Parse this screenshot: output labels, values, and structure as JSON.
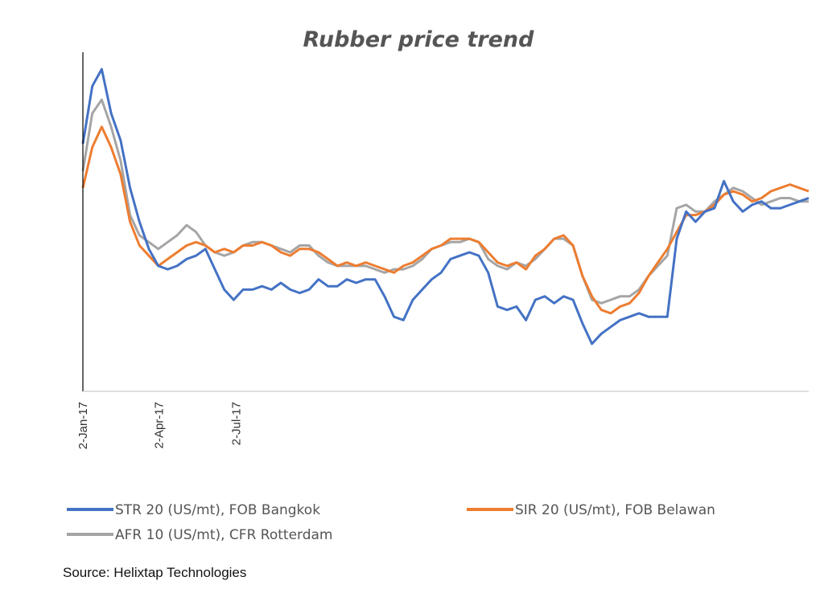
{
  "chart_data": {
    "type": "line",
    "title": "Rubber price trend",
    "x_tick_labels": [
      "2-Jan-17",
      "2-Apr-17",
      "2-Jul-17"
    ],
    "x_tick_dates": [
      "2017-01-02",
      "2017-04-02",
      "2017-07-02"
    ],
    "ylim": [
      0,
      1
    ],
    "y_tick_labels_visible": false,
    "grid": false,
    "legend_position": "bottom",
    "series": [
      {
        "name": "STR 20 (US/mt), FOB Bangkok",
        "color": "#4472C4",
        "values": [
          0.73,
          0.9,
          0.95,
          0.82,
          0.74,
          0.6,
          0.5,
          0.42,
          0.37,
          0.36,
          0.37,
          0.39,
          0.4,
          0.42,
          0.36,
          0.3,
          0.27,
          0.3,
          0.3,
          0.31,
          0.3,
          0.32,
          0.3,
          0.29,
          0.3,
          0.33,
          0.31,
          0.31,
          0.33,
          0.32,
          0.33,
          0.33,
          0.28,
          0.22,
          0.21,
          0.27,
          0.3,
          0.33,
          0.35,
          0.39,
          0.4,
          0.41,
          0.4,
          0.35,
          0.25,
          0.24,
          0.25,
          0.21,
          0.27,
          0.28,
          0.26,
          0.28,
          0.27,
          0.2,
          0.14,
          0.17,
          0.19,
          0.21,
          0.22,
          0.23,
          0.22,
          0.22,
          0.22,
          0.45,
          0.53,
          0.5,
          0.53,
          0.54,
          0.62,
          0.56,
          0.53,
          0.55,
          0.56,
          0.54,
          0.54,
          0.55,
          0.56,
          0.57
        ]
      },
      {
        "name": "SIR 20 (US/mt), FOB Belawan",
        "color": "#ED7D31",
        "values": [
          0.6,
          0.72,
          0.78,
          0.72,
          0.64,
          0.5,
          0.43,
          0.4,
          0.37,
          0.39,
          0.41,
          0.43,
          0.44,
          0.43,
          0.41,
          0.42,
          0.41,
          0.43,
          0.43,
          0.44,
          0.43,
          0.41,
          0.4,
          0.42,
          0.42,
          0.41,
          0.39,
          0.37,
          0.38,
          0.37,
          0.38,
          0.37,
          0.36,
          0.35,
          0.37,
          0.38,
          0.4,
          0.42,
          0.43,
          0.45,
          0.45,
          0.45,
          0.44,
          0.41,
          0.38,
          0.37,
          0.38,
          0.36,
          0.4,
          0.42,
          0.45,
          0.46,
          0.43,
          0.34,
          0.28,
          0.24,
          0.23,
          0.25,
          0.26,
          0.29,
          0.34,
          0.38,
          0.42,
          0.47,
          0.52,
          0.52,
          0.53,
          0.55,
          0.58,
          0.59,
          0.58,
          0.56,
          0.57,
          0.59,
          0.6,
          0.61,
          0.6,
          0.59
        ]
      },
      {
        "name": "AFR 10 (US/mt), CFR Rotterdam",
        "color": "#A5A5A5",
        "values": [
          0.65,
          0.82,
          0.86,
          0.78,
          0.68,
          0.52,
          0.46,
          0.44,
          0.42,
          0.44,
          0.46,
          0.49,
          0.47,
          0.43,
          0.41,
          0.4,
          0.41,
          0.43,
          0.44,
          0.44,
          0.43,
          0.42,
          0.41,
          0.43,
          0.43,
          0.4,
          0.38,
          0.37,
          0.37,
          0.37,
          0.37,
          0.36,
          0.35,
          0.36,
          0.36,
          0.37,
          0.39,
          0.42,
          0.43,
          0.44,
          0.44,
          0.45,
          0.44,
          0.39,
          0.37,
          0.36,
          0.38,
          0.37,
          0.39,
          0.42,
          0.45,
          0.45,
          0.43,
          0.34,
          0.27,
          0.26,
          0.27,
          0.28,
          0.28,
          0.3,
          0.34,
          0.37,
          0.4,
          0.54,
          0.55,
          0.53,
          0.53,
          0.56,
          0.58,
          0.6,
          0.59,
          0.57,
          0.55,
          0.56,
          0.57,
          0.57,
          0.56,
          0.56
        ]
      }
    ]
  },
  "source": "Source: Helixtap Technologies"
}
